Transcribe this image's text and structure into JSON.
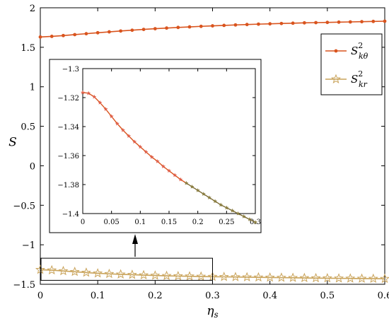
{
  "chart_data": {
    "type": "line",
    "xlabel": "η",
    "xlabel_sub": "s",
    "ylabel": "S",
    "xlim": [
      0,
      0.6
    ],
    "ylim": [
      -1.5,
      2
    ],
    "xticks": [
      "0",
      "0.1",
      "0.2",
      "0.3",
      "0.4",
      "0.5",
      "0.6"
    ],
    "yticks": [
      "-1.5",
      "-1",
      "-0.5",
      "0",
      "0.5",
      "1",
      "1.5",
      "2"
    ],
    "grid": false,
    "legend_position": "top-right",
    "series": [
      {
        "name_main": "S",
        "name_sup": "2",
        "name_sub": "kθ",
        "marker": "dot",
        "color": "#d9541e",
        "x": [
          0,
          0.02,
          0.04,
          0.06,
          0.08,
          0.1,
          0.12,
          0.14,
          0.16,
          0.18,
          0.2,
          0.22,
          0.24,
          0.26,
          0.28,
          0.3,
          0.32,
          0.34,
          0.36,
          0.38,
          0.4,
          0.42,
          0.44,
          0.46,
          0.48,
          0.5,
          0.52,
          0.54,
          0.56,
          0.58,
          0.6
        ],
        "values": [
          1.63,
          1.638,
          1.648,
          1.66,
          1.672,
          1.684,
          1.695,
          1.706,
          1.716,
          1.726,
          1.735,
          1.743,
          1.751,
          1.758,
          1.765,
          1.771,
          1.777,
          1.783,
          1.788,
          1.793,
          1.797,
          1.801,
          1.805,
          1.809,
          1.812,
          1.815,
          1.818,
          1.821,
          1.824,
          1.827,
          1.83
        ]
      },
      {
        "name_main": "S",
        "name_sup": "2",
        "name_sub": "kr",
        "marker": "star",
        "color": "#c9a35a",
        "x": [
          0,
          0.02,
          0.04,
          0.06,
          0.08,
          0.1,
          0.12,
          0.14,
          0.16,
          0.18,
          0.2,
          0.22,
          0.24,
          0.26,
          0.28,
          0.3,
          0.32,
          0.34,
          0.36,
          0.38,
          0.4,
          0.42,
          0.44,
          0.46,
          0.48,
          0.5,
          0.52,
          0.54,
          0.56,
          0.58,
          0.6
        ],
        "values": [
          -1.316,
          -1.322,
          -1.332,
          -1.342,
          -1.352,
          -1.361,
          -1.368,
          -1.374,
          -1.379,
          -1.384,
          -1.389,
          -1.393,
          -1.396,
          -1.399,
          -1.402,
          -1.404,
          -1.406,
          -1.408,
          -1.41,
          -1.412,
          -1.414,
          -1.416,
          -1.418,
          -1.42,
          -1.422,
          -1.423,
          -1.425,
          -1.426,
          -1.428,
          -1.429,
          -1.43
        ]
      }
    ],
    "inset": {
      "xlim": [
        0,
        0.3
      ],
      "ylim": [
        -1.4,
        -1.3
      ],
      "xticks": [
        "0",
        "0.05",
        "0.1",
        "0.15",
        "0.2",
        "0.25",
        "0.3"
      ],
      "yticks": [
        "-1.4",
        "-1.38",
        "-1.36",
        "-1.34",
        "-1.32",
        "-1.3"
      ],
      "x": [
        0,
        0.01,
        0.02,
        0.03,
        0.04,
        0.05,
        0.06,
        0.07,
        0.08,
        0.09,
        0.1,
        0.11,
        0.12,
        0.13,
        0.14,
        0.15,
        0.16,
        0.17,
        0.18,
        0.19,
        0.2,
        0.21,
        0.22,
        0.23,
        0.24,
        0.25,
        0.26,
        0.27,
        0.28,
        0.29,
        0.3
      ],
      "values": [
        -1.3165,
        -1.317,
        -1.3195,
        -1.3235,
        -1.328,
        -1.333,
        -1.338,
        -1.3425,
        -1.3465,
        -1.3505,
        -1.354,
        -1.3575,
        -1.361,
        -1.364,
        -1.3675,
        -1.3705,
        -1.3735,
        -1.3765,
        -1.379,
        -1.3815,
        -1.384,
        -1.3865,
        -1.389,
        -1.3915,
        -1.394,
        -1.396,
        -1.398,
        -1.4,
        -1.402,
        -1.404,
        -1.406
      ]
    }
  }
}
